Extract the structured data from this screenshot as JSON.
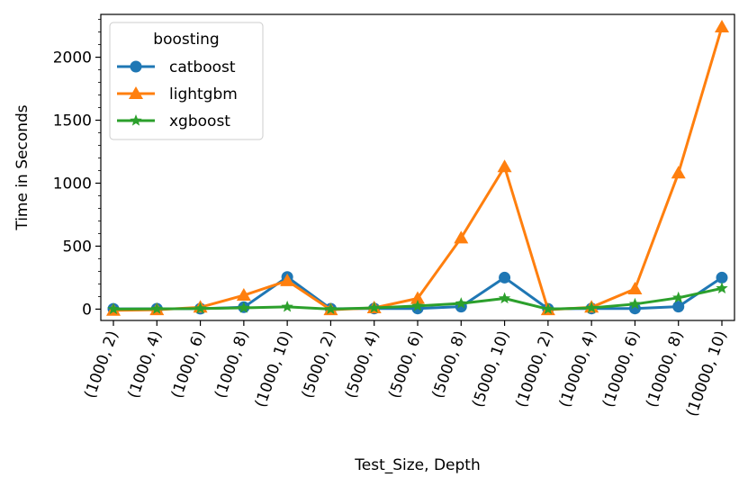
{
  "chart_data": {
    "type": "line",
    "title": "",
    "xlabel": "Test_Size, Depth",
    "ylabel": "Time in Seconds",
    "categories": [
      "(1000, 2)",
      "(1000, 4)",
      "(1000, 6)",
      "(1000, 8)",
      "(1000, 10)",
      "(5000, 2)",
      "(5000, 4)",
      "(5000, 6)",
      "(5000, 8)",
      "(5000, 10)",
      "(10000, 2)",
      "(10000, 4)",
      "(10000, 6)",
      "(10000, 8)",
      "(10000, 10)"
    ],
    "ylim": [
      -90,
      2340
    ],
    "yticks": [
      0,
      500,
      1000,
      1500,
      2000
    ],
    "legend": {
      "title": "boosting",
      "position": "top-left"
    },
    "series": [
      {
        "name": "catboost",
        "color": "#1f77b4",
        "marker": "circle",
        "values": [
          2,
          3,
          4,
          15,
          255,
          3,
          5,
          5,
          20,
          250,
          2,
          5,
          5,
          20,
          250
        ]
      },
      {
        "name": "lightgbm",
        "color": "#ff7f0e",
        "marker": "triangle",
        "values": [
          -10,
          -5,
          15,
          110,
          225,
          -5,
          10,
          85,
          565,
          1130,
          -5,
          15,
          160,
          1080,
          2240
        ]
      },
      {
        "name": "xgboost",
        "color": "#2ca02c",
        "marker": "star",
        "values": [
          0,
          2,
          5,
          10,
          18,
          0,
          10,
          25,
          45,
          85,
          0,
          10,
          40,
          90,
          165
        ]
      }
    ]
  }
}
